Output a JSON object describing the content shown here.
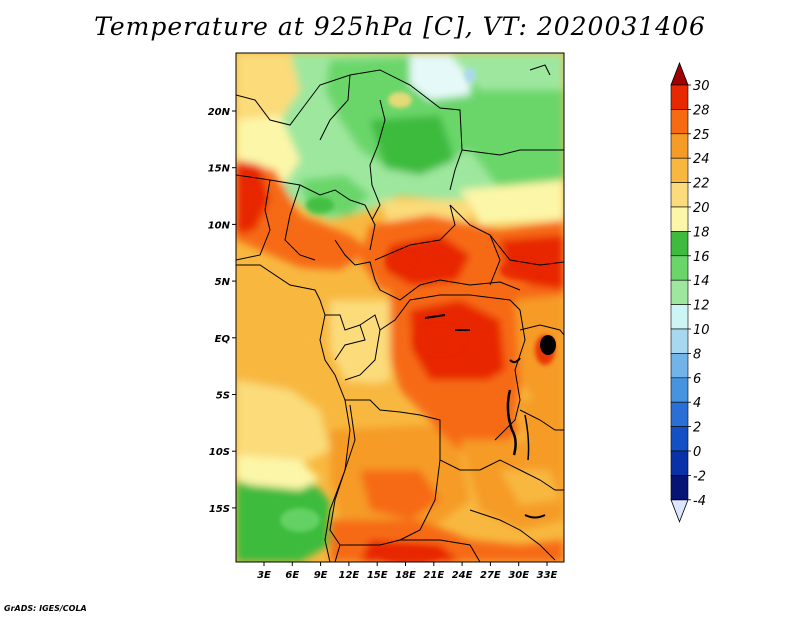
{
  "title": "Temperature at 925hPa [C], VT: 2020031406",
  "credit": "GrADS: IGES/COLA",
  "map": {
    "lon_labels": [
      "3E",
      "6E",
      "9E",
      "12E",
      "15E",
      "18E",
      "21E",
      "24E",
      "27E",
      "30E",
      "33E"
    ],
    "lat_labels": [
      "20N",
      "15N",
      "10N",
      "5N",
      "EQ",
      "5S",
      "10S",
      "15S"
    ]
  },
  "colorbar": {
    "labels": [
      "30",
      "28",
      "25",
      "24",
      "22",
      "20",
      "18",
      "16",
      "14",
      "12",
      "10",
      "8",
      "6",
      "4",
      "2",
      "0",
      "-2",
      "-4"
    ],
    "colors": [
      "#a00000",
      "#e82800",
      "#f66a12",
      "#f59b28",
      "#f8b840",
      "#fbdb7a",
      "#fcf6a8",
      "#3ebb3e",
      "#6ad66a",
      "#9ee79e",
      "#cef5f5",
      "#a8d8f0",
      "#72b4e8",
      "#4693df",
      "#2a6fd6",
      "#1450c5",
      "#0a32a8",
      "#061575",
      "#dde6ff"
    ]
  },
  "colors": {
    "background": "#ffffff",
    "border": "#000000"
  }
}
